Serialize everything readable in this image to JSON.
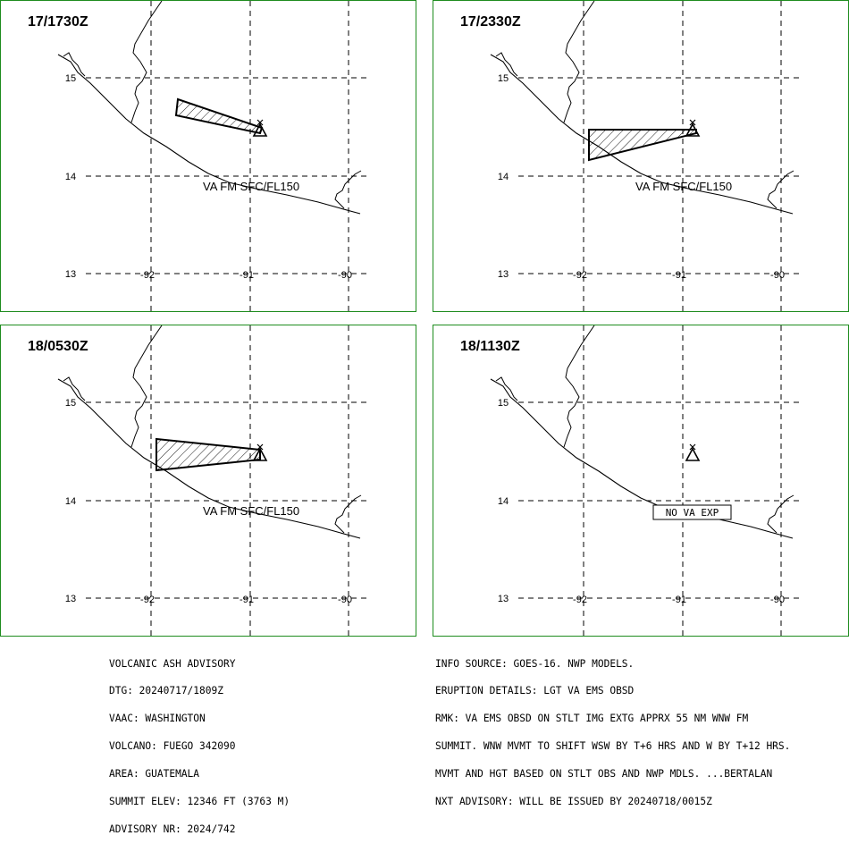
{
  "map": {
    "lat_labels": [
      "15",
      "14",
      "13"
    ],
    "lon_labels": [
      "-92",
      "-91",
      "-90"
    ],
    "border_color": "#1e8c1e",
    "ash_label": "VA FM SFC/FL150",
    "no_ash_label": "NO VA EXP",
    "volcano_icon": "triangle-volcano-icon"
  },
  "panels": [
    {
      "time": "17/1730Z",
      "ash": "wedge-narrow"
    },
    {
      "time": "17/2330Z",
      "ash": "wedge-wide"
    },
    {
      "time": "18/0530Z",
      "ash": "wedge-mid"
    },
    {
      "time": "18/1130Z",
      "ash": "none"
    }
  ],
  "advisory_left": [
    "VOLCANIC ASH ADVISORY",
    "DTG: 20240717/1809Z",
    "VAAC: WASHINGTON",
    "VOLCANO: FUEGO 342090",
    "AREA: GUATEMALA",
    "SUMMIT ELEV: 12346 FT (3763 M)",
    "ADVISORY NR: 2024/742"
  ],
  "advisory_right": [
    "INFO SOURCE: GOES-16. NWP MODELS.",
    "ERUPTION DETAILS: LGT VA EMS OBSD",
    "RMK: VA EMS OBSD ON STLT IMG EXTG APPRX 55 NM WNW FM",
    "SUMMIT. WNW MVMT TO SHIFT WSW BY T+6 HRS AND W BY T+12 HRS.",
    "MVMT AND HGT BASED ON STLT OBS AND NWP MDLS. ...BERTALAN",
    "NXT ADVISORY: WILL BE ISSUED BY 20240718/0015Z"
  ]
}
